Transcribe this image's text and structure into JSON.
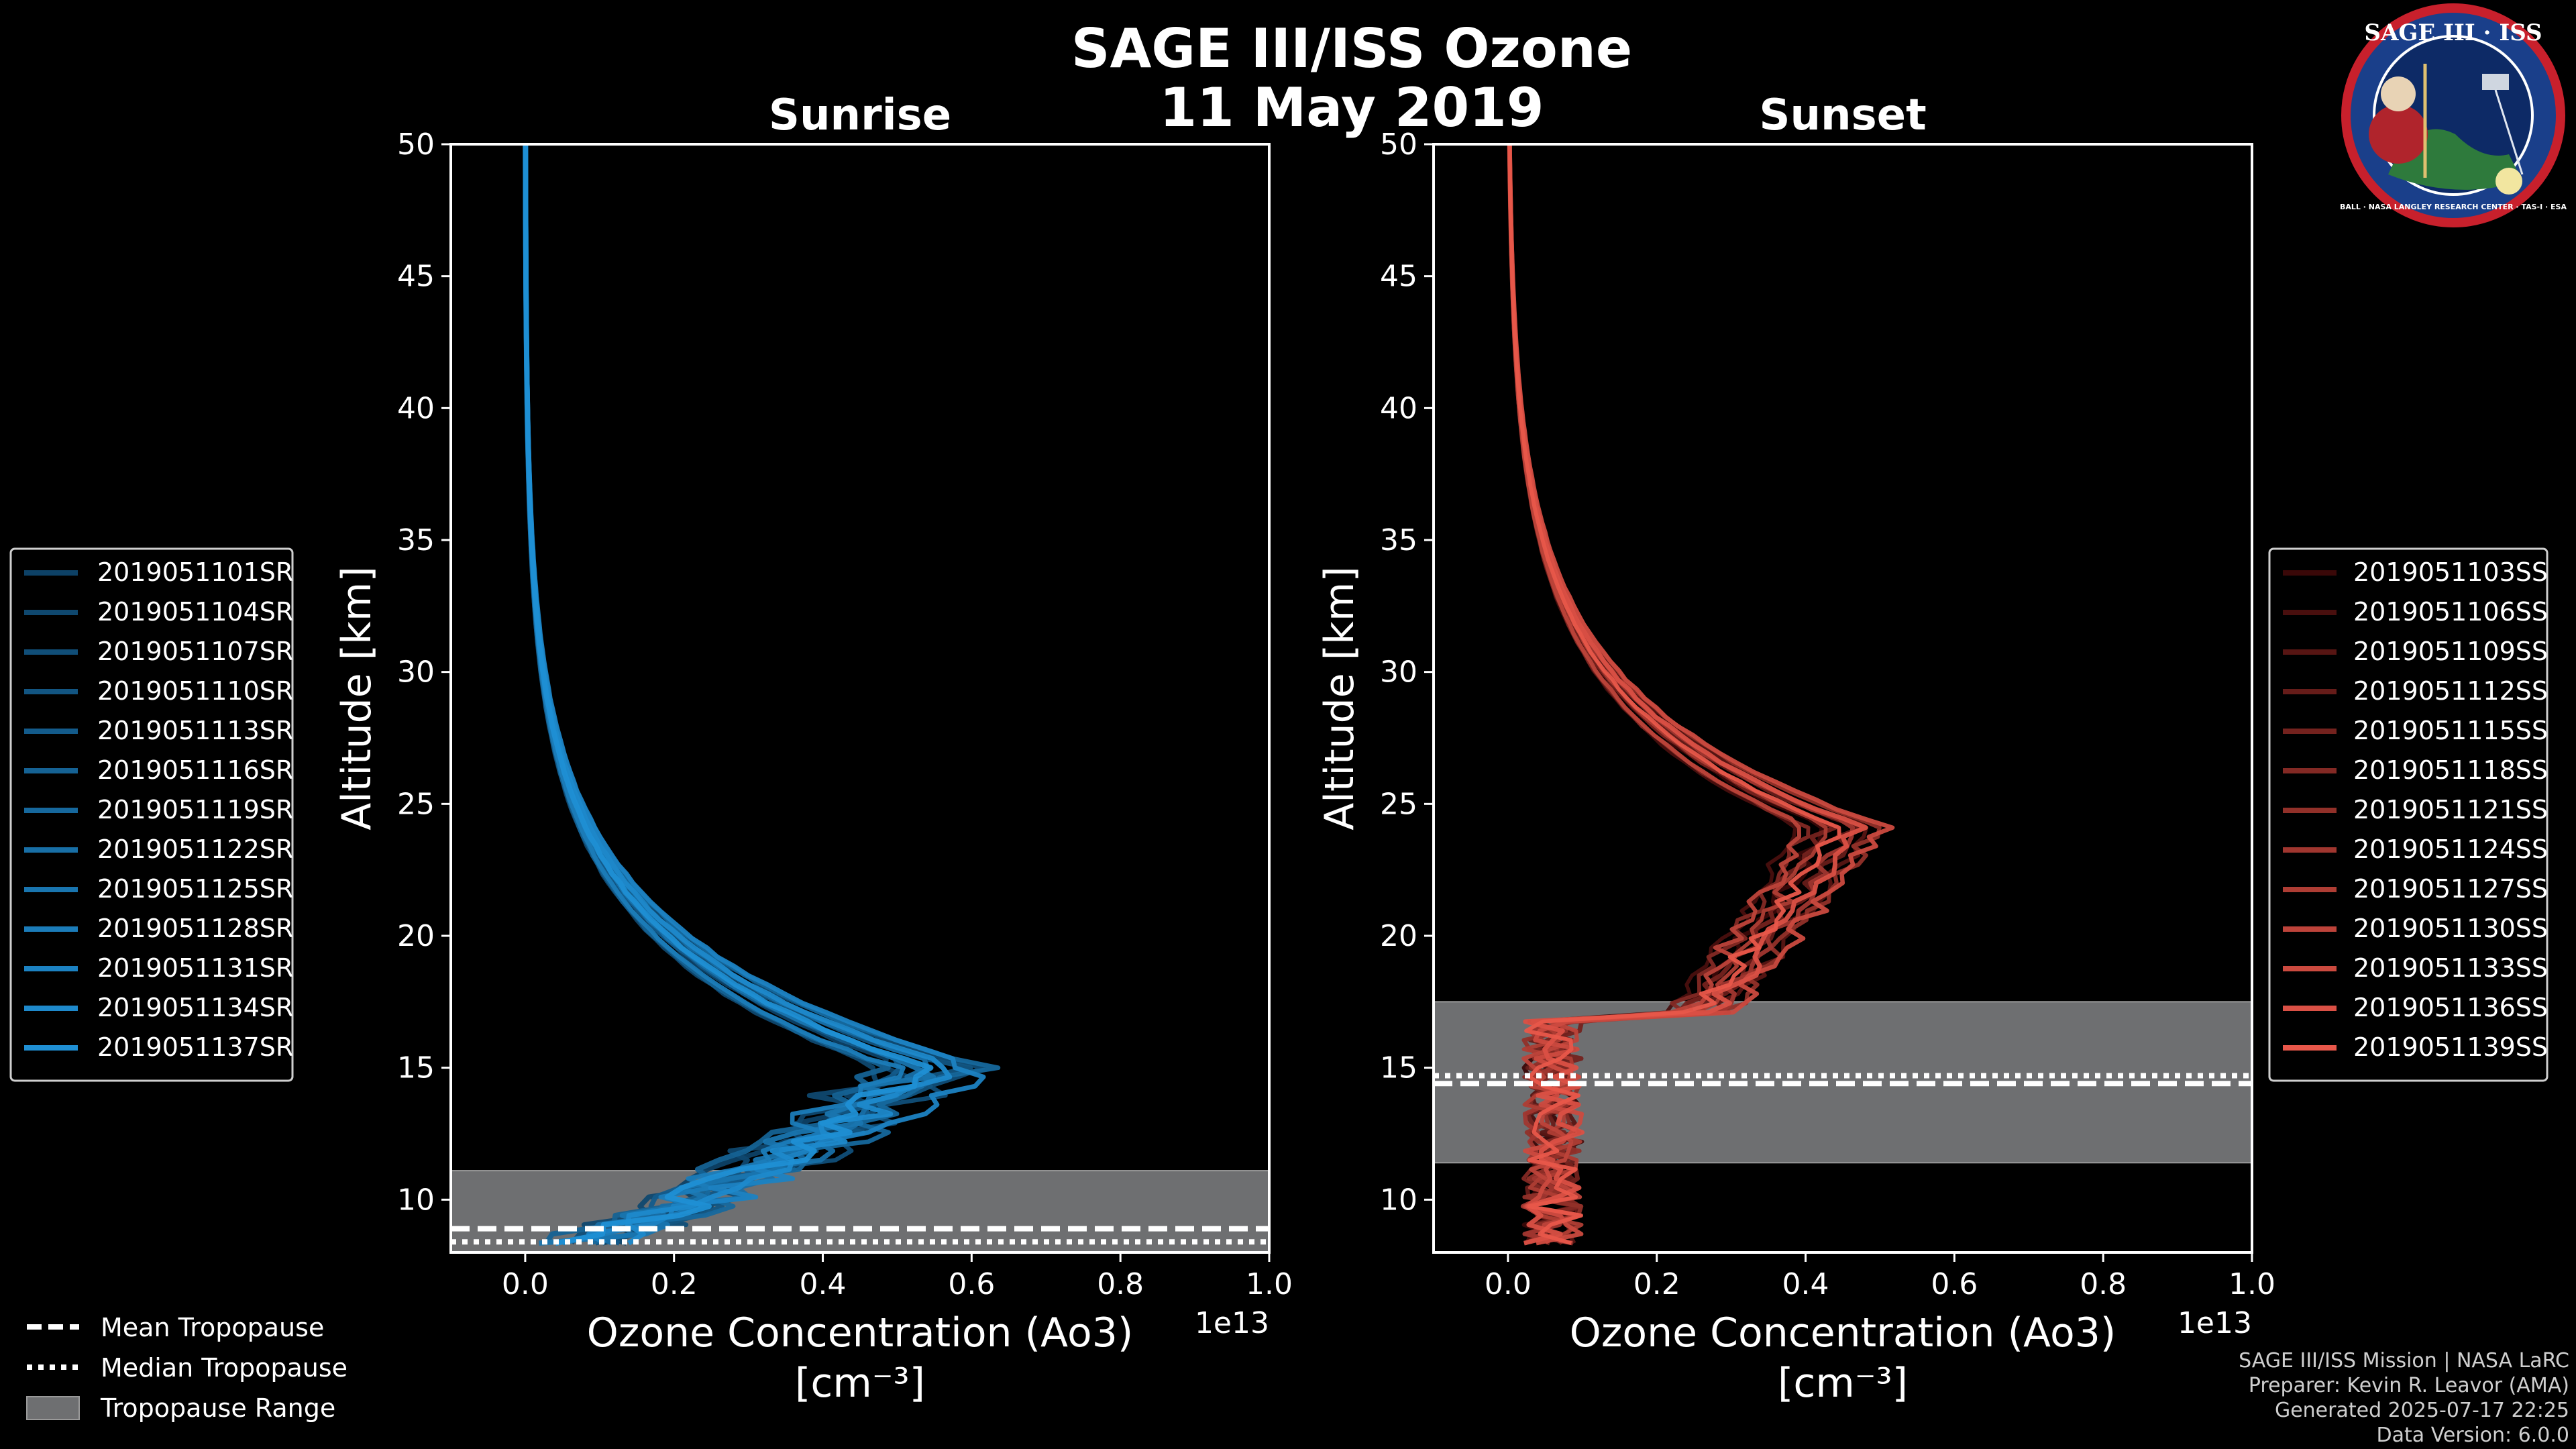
{
  "title_line1": "SAGE III/ISS Ozone",
  "title_line2": "11 May 2019",
  "footer": {
    "mission": "SAGE III/ISS Mission | NASA LaRC",
    "preparer": "Preparer: Kevin R. Leavor (AMA)",
    "generated": "Generated 2025-07-17 22:25",
    "data_version": "Data Version: 6.0.0"
  },
  "logo": {
    "top": "SAGE III · ISS",
    "ring": "BALL · NASA LANGLEY RESEARCH CENTER · TAS-I · ESA"
  },
  "tropopause_legend": [
    "Mean Tropopause",
    "Median Tropopause",
    "Tropopause Range"
  ],
  "chart_data": [
    {
      "type": "line",
      "title": "Sunrise",
      "xlabel": "Ozone Concentration (Ao3)",
      "xunit": "[cm⁻³]",
      "xscale_label": "1e13",
      "ylabel": "Altitude [km]",
      "xlim": [
        -0.1,
        1.0
      ],
      "ylim": [
        8,
        50
      ],
      "xticks": [
        "0.0",
        "0.2",
        "0.4",
        "0.6",
        "0.8",
        "1.0"
      ],
      "yticks": [
        "10",
        "15",
        "20",
        "25",
        "30",
        "35",
        "40",
        "45",
        "50"
      ],
      "tropopause": {
        "mean": 8.9,
        "median": 8.4,
        "range": [
          8.0,
          11.1
        ]
      },
      "color_dark": "#0d4166",
      "color_light": "#1f8fd4",
      "peak_alt": 16.5,
      "peak_val": 0.55,
      "series": [
        "2019051101SR",
        "2019051104SR",
        "2019051107SR",
        "2019051110SR",
        "2019051113SR",
        "2019051116SR",
        "2019051119SR",
        "2019051122SR",
        "2019051125SR",
        "2019051128SR",
        "2019051131SR",
        "2019051134SR",
        "2019051137SR"
      ]
    },
    {
      "type": "line",
      "title": "Sunset",
      "xlabel": "Ozone Concentration (Ao3)",
      "xunit": "[cm⁻³]",
      "xscale_label": "1e13",
      "ylabel": "Altitude [km]",
      "xlim": [
        -0.1,
        1.0
      ],
      "ylim": [
        8,
        50
      ],
      "xticks": [
        "0.0",
        "0.2",
        "0.4",
        "0.6",
        "0.8",
        "1.0"
      ],
      "yticks": [
        "10",
        "15",
        "20",
        "25",
        "30",
        "35",
        "40",
        "45",
        "50"
      ],
      "tropopause": {
        "mean": 14.4,
        "median": 14.7,
        "range": [
          11.4,
          17.5
        ]
      },
      "color_dark": "#3a0808",
      "color_light": "#e8574a",
      "peak_alt": 25.5,
      "peak_val": 0.44,
      "series": [
        "2019051103SS",
        "2019051106SS",
        "2019051109SS",
        "2019051112SS",
        "2019051115SS",
        "2019051118SS",
        "2019051121SS",
        "2019051124SS",
        "2019051127SS",
        "2019051130SS",
        "2019051133SS",
        "2019051136SS",
        "2019051139SS"
      ]
    }
  ]
}
